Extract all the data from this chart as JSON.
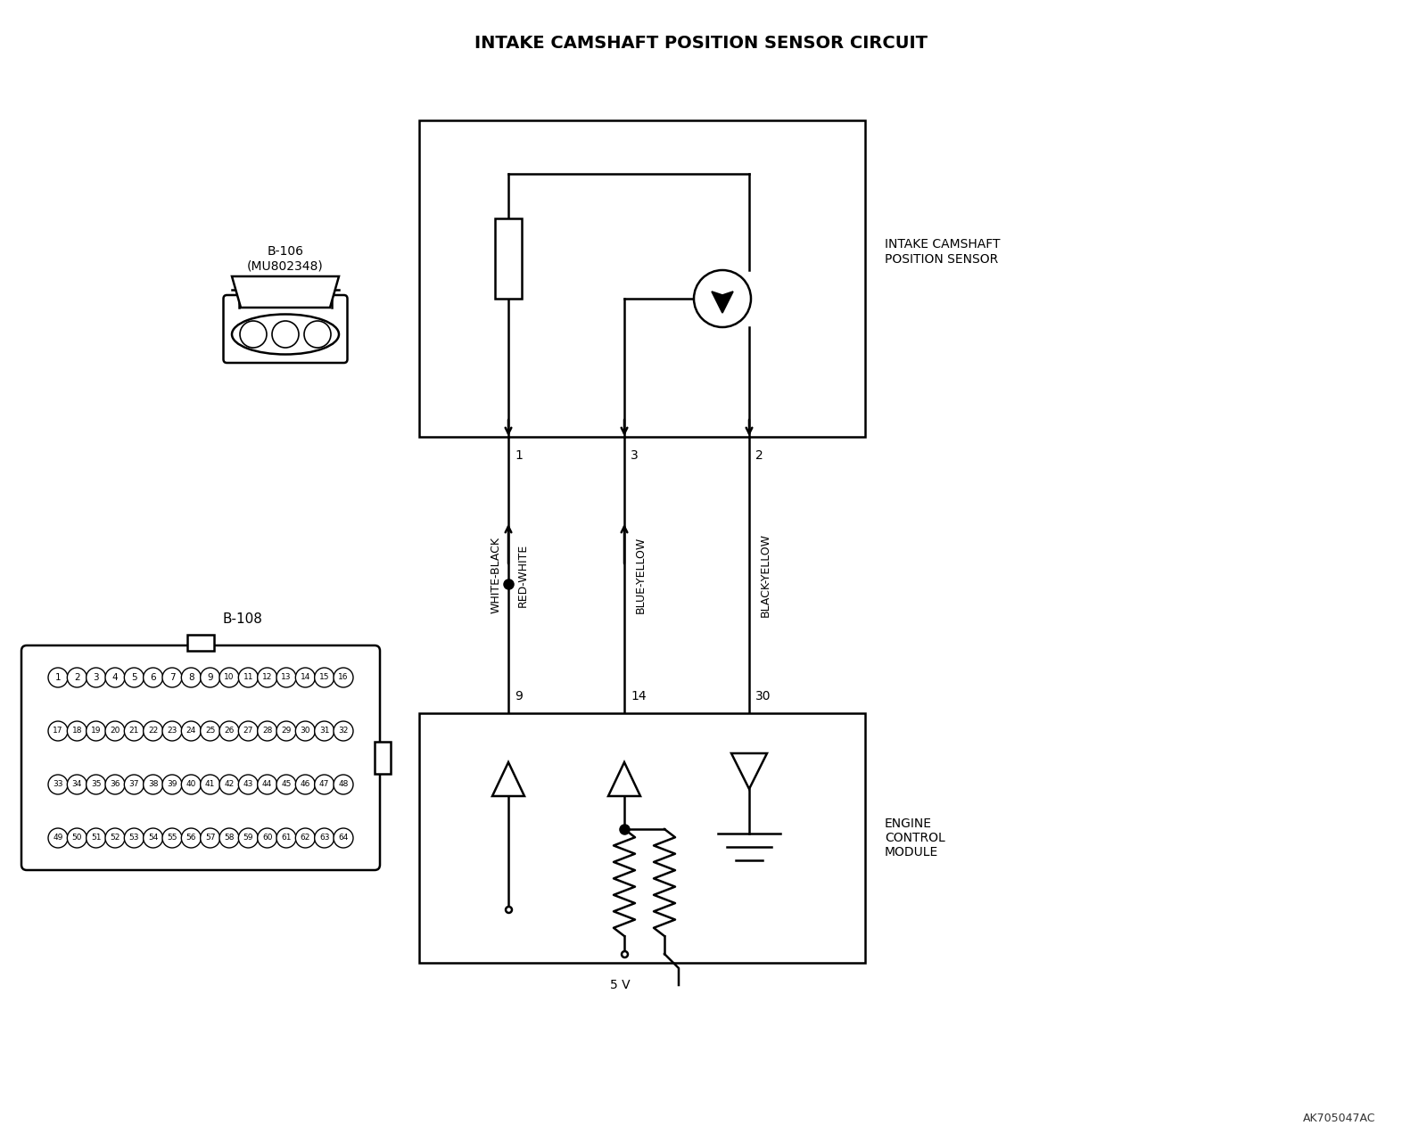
{
  "title": "INTAKE CAMSHAFT POSITION SENSOR CIRCUIT",
  "title_fontsize": 14,
  "bg_color": "#ffffff",
  "line_color": "#000000",
  "watermark": "AK705047AC",
  "sensor_label": "INTAKE CAMSHAFT\nPOSITION SENSOR",
  "ecm_label": "ENGINE\nCONTROL\nMODULE",
  "connector_b106_label": "B-106\n(MU802348)",
  "connector_b108_label": "B-108",
  "wire1_label": "WHITE-BLACK",
  "wire1b_label": "RED-WHITE",
  "wire2_label": "BLUE-YELLOW",
  "wire3_label": "BLACK-YELLOW",
  "pin1": "1",
  "pin2": "2",
  "pin3": "3",
  "ecm_pin1": "9",
  "ecm_pin2": "14",
  "ecm_pin3": "30",
  "voltage_label": "5 V"
}
